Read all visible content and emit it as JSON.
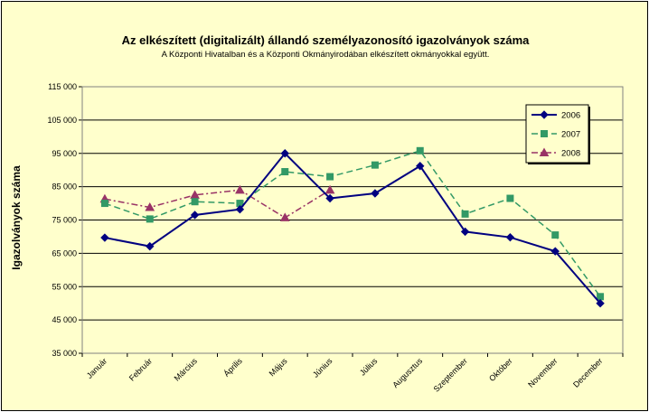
{
  "chart_data": {
    "type": "line",
    "title": "Az elkészített (digitalizált) állandó személyazonosító igazolványok száma",
    "subtitle": "A Központi Hivatalban és a Központi Okmányirodában elkészített okmányokkal együtt.",
    "xlabel": "",
    "ylabel": "Igazolványok száma",
    "ylim": [
      35000,
      115000
    ],
    "yticks": [
      "115 000",
      "105 000",
      "95 000",
      "85 000",
      "75 000",
      "65 000",
      "55 000",
      "45 000",
      "35 000"
    ],
    "grid": true,
    "legend_position": "top-right",
    "categories": [
      "Január",
      "Február",
      "Március",
      "Április",
      "Május",
      "Június",
      "Július",
      "Augusztus",
      "Szeptember",
      "Október",
      "November",
      "December"
    ],
    "series": [
      {
        "name": "2006",
        "color": "#000080",
        "marker": "diamond",
        "dash": "solid",
        "values": [
          69700,
          67100,
          76500,
          78200,
          95000,
          81500,
          83000,
          91200,
          71500,
          69800,
          65600,
          50000
        ]
      },
      {
        "name": "2007",
        "color": "#339966",
        "marker": "square",
        "dash": "dashed",
        "values": [
          80000,
          75300,
          80500,
          80000,
          89500,
          88000,
          91500,
          95800,
          76800,
          81500,
          70500,
          52000
        ]
      },
      {
        "name": "2008",
        "color": "#993366",
        "marker": "triangle",
        "dash": "dashdot",
        "values": [
          81300,
          78800,
          82500,
          84000,
          75700,
          84000,
          null,
          null,
          null,
          null,
          null,
          null
        ]
      }
    ]
  }
}
